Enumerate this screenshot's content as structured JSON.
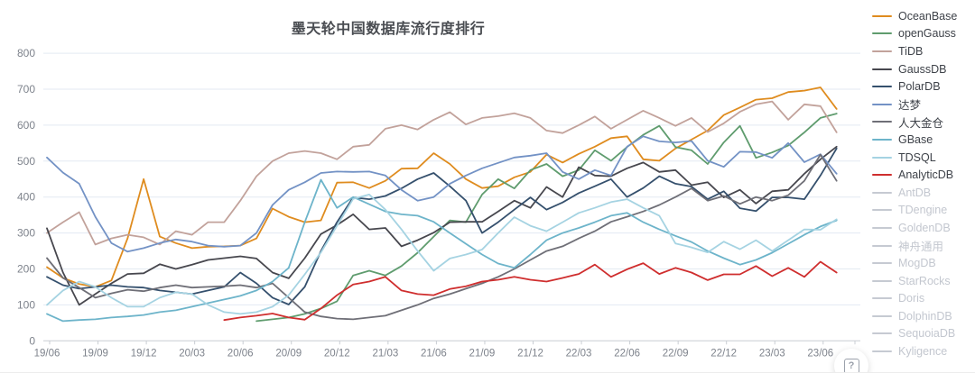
{
  "help_button": {
    "label": "?"
  },
  "chart": {
    "title": "墨天轮中国数据库流行度排行",
    "type": "line",
    "grid": true,
    "legend_position": "right",
    "y_axis": {
      "min": 0,
      "max": 800,
      "step": 100,
      "ticks": [
        0,
        100,
        200,
        300,
        400,
        500,
        600,
        700,
        800
      ]
    },
    "x_tick_labels": [
      "19/06",
      "19/09",
      "19/12",
      "20/03",
      "20/06",
      "20/09",
      "20/12",
      "21/03",
      "21/06",
      "21/09",
      "21/12",
      "22/03",
      "22/06",
      "22/09",
      "22/12",
      "23/03",
      "23/06"
    ],
    "x_months": [
      "19/06",
      "19/07",
      "19/08",
      "19/09",
      "19/10",
      "19/11",
      "19/12",
      "20/01",
      "20/02",
      "20/03",
      "20/04",
      "20/05",
      "20/06",
      "20/07",
      "20/08",
      "20/09",
      "20/10",
      "20/11",
      "20/12",
      "21/01",
      "21/02",
      "21/03",
      "21/04",
      "21/05",
      "21/06",
      "21/07",
      "21/08",
      "21/09",
      "21/10",
      "21/11",
      "21/12",
      "22/01",
      "22/02",
      "22/03",
      "22/04",
      "22/05",
      "22/06",
      "22/07",
      "22/08",
      "22/09",
      "22/10",
      "22/11",
      "22/12",
      "23/01",
      "23/02",
      "23/03",
      "23/04",
      "23/05",
      "23/06",
      "23/07"
    ],
    "series": [
      {
        "name": "OceanBase",
        "color": "#df8c1f",
        "values": [
          205,
          175,
          158,
          150,
          168,
          285,
          450,
          290,
          272,
          258,
          262,
          263,
          265,
          285,
          368,
          345,
          330,
          335,
          440,
          441,
          425,
          445,
          479,
          480,
          522,
          492,
          450,
          425,
          430,
          455,
          470,
          518,
          496,
          520,
          540,
          564,
          569,
          505,
          501,
          535,
          560,
          585,
          628,
          649,
          671,
          675,
          692,
          696,
          705,
          645
        ]
      },
      {
        "name": "openGauss",
        "color": "#5f9c6e",
        "values": [
          null,
          null,
          null,
          null,
          null,
          null,
          null,
          null,
          null,
          null,
          null,
          null,
          null,
          55,
          60,
          65,
          75,
          90,
          110,
          182,
          195,
          182,
          208,
          245,
          290,
          335,
          330,
          407,
          450,
          424,
          475,
          492,
          458,
          475,
          530,
          501,
          539,
          573,
          598,
          539,
          530,
          492,
          552,
          598,
          509,
          524,
          543,
          580,
          620,
          632
        ]
      },
      {
        "name": "TiDB",
        "color": "#c2a29b",
        "values": [
          300,
          330,
          358,
          268,
          285,
          295,
          288,
          268,
          305,
          295,
          330,
          330,
          390,
          458,
          500,
          522,
          528,
          522,
          505,
          540,
          545,
          590,
          600,
          588,
          615,
          636,
          602,
          620,
          625,
          633,
          620,
          585,
          578,
          600,
          624,
          590,
          615,
          640,
          620,
          598,
          620,
          581,
          605,
          637,
          658,
          666,
          615,
          658,
          653,
          580
        ]
      },
      {
        "name": "GaussDB",
        "color": "#47474e",
        "values": [
          313,
          190,
          100,
          130,
          160,
          186,
          188,
          213,
          200,
          212,
          225,
          230,
          235,
          229,
          190,
          174,
          230,
          297,
          322,
          352,
          310,
          314,
          263,
          280,
          301,
          330,
          331,
          331,
          360,
          390,
          370,
          428,
          400,
          483,
          460,
          458,
          480,
          496,
          470,
          475,
          433,
          441,
          399,
          420,
          382,
          416,
          420,
          465,
          505,
          540
        ]
      },
      {
        "name": "PolarDB",
        "color": "#35506d",
        "values": [
          178,
          155,
          145,
          150,
          155,
          150,
          148,
          140,
          135,
          130,
          140,
          150,
          190,
          160,
          120,
          101,
          150,
          250,
          330,
          399,
          394,
          403,
          424,
          450,
          467,
          430,
          390,
          300,
          330,
          365,
          399,
          365,
          385,
          411,
          430,
          450,
          400,
          425,
          458,
          437,
          429,
          394,
          416,
          369,
          361,
          399,
          399,
          394,
          460,
          535
        ]
      },
      {
        "name": "达梦",
        "color": "#7392c5",
        "values": [
          510,
          468,
          437,
          345,
          272,
          248,
          258,
          272,
          282,
          276,
          265,
          262,
          265,
          300,
          378,
          420,
          441,
          467,
          471,
          470,
          471,
          460,
          420,
          390,
          400,
          437,
          460,
          480,
          495,
          510,
          515,
          522,
          470,
          450,
          475,
          460,
          540,
          569,
          555,
          552,
          556,
          501,
          484,
          526,
          525,
          509,
          550,
          497,
          519,
          465
        ]
      },
      {
        "name": "人大金仓",
        "color": "#6f6f77",
        "values": [
          230,
          175,
          148,
          120,
          132,
          142,
          138,
          148,
          155,
          148,
          150,
          152,
          155,
          148,
          160,
          120,
          80,
          68,
          62,
          60,
          65,
          70,
          85,
          100,
          118,
          130,
          145,
          160,
          178,
          200,
          225,
          250,
          263,
          285,
          305,
          331,
          345,
          360,
          378,
          400,
          424,
          390,
          403,
          381,
          400,
          390,
          405,
          445,
          518,
          445
        ]
      },
      {
        "name": "GBase",
        "color": "#6db4ca",
        "values": [
          75,
          55,
          58,
          60,
          65,
          68,
          72,
          80,
          85,
          95,
          105,
          115,
          125,
          140,
          165,
          203,
          330,
          448,
          370,
          400,
          380,
          360,
          352,
          348,
          331,
          300,
          270,
          240,
          215,
          203,
          240,
          280,
          300,
          314,
          330,
          348,
          356,
          330,
          310,
          292,
          275,
          250,
          230,
          212,
          225,
          245,
          270,
          295,
          318,
          335
        ]
      },
      {
        "name": "TDSQL",
        "color": "#a5d3e2",
        "values": [
          100,
          140,
          165,
          150,
          120,
          95,
          95,
          120,
          135,
          130,
          100,
          80,
          75,
          80,
          95,
          127,
          185,
          246,
          320,
          395,
          407,
          365,
          310,
          250,
          195,
          229,
          240,
          254,
          300,
          344,
          320,
          305,
          330,
          356,
          370,
          386,
          394,
          370,
          348,
          271,
          260,
          246,
          276,
          255,
          280,
          250,
          280,
          310,
          309,
          338
        ]
      },
      {
        "name": "AnalyticDB",
        "color": "#cf2e2e",
        "values": [
          null,
          null,
          null,
          null,
          null,
          null,
          null,
          null,
          null,
          null,
          null,
          58,
          65,
          70,
          76,
          65,
          59,
          90,
          127,
          157,
          165,
          178,
          140,
          130,
          127,
          144,
          152,
          165,
          170,
          178,
          170,
          165,
          175,
          186,
          212,
          178,
          199,
          216,
          186,
          203,
          190,
          169,
          185,
          185,
          208,
          180,
          203,
          178,
          220,
          190
        ]
      }
    ],
    "legend_inactive": [
      "AntDB",
      "TDengine",
      "GoldenDB",
      "神舟通用",
      "MogDB",
      "StarRocks",
      "Doris",
      "DolphinDB",
      "SequoiaDB",
      "Kyligence"
    ],
    "inactive_color": "#c6cad2"
  }
}
